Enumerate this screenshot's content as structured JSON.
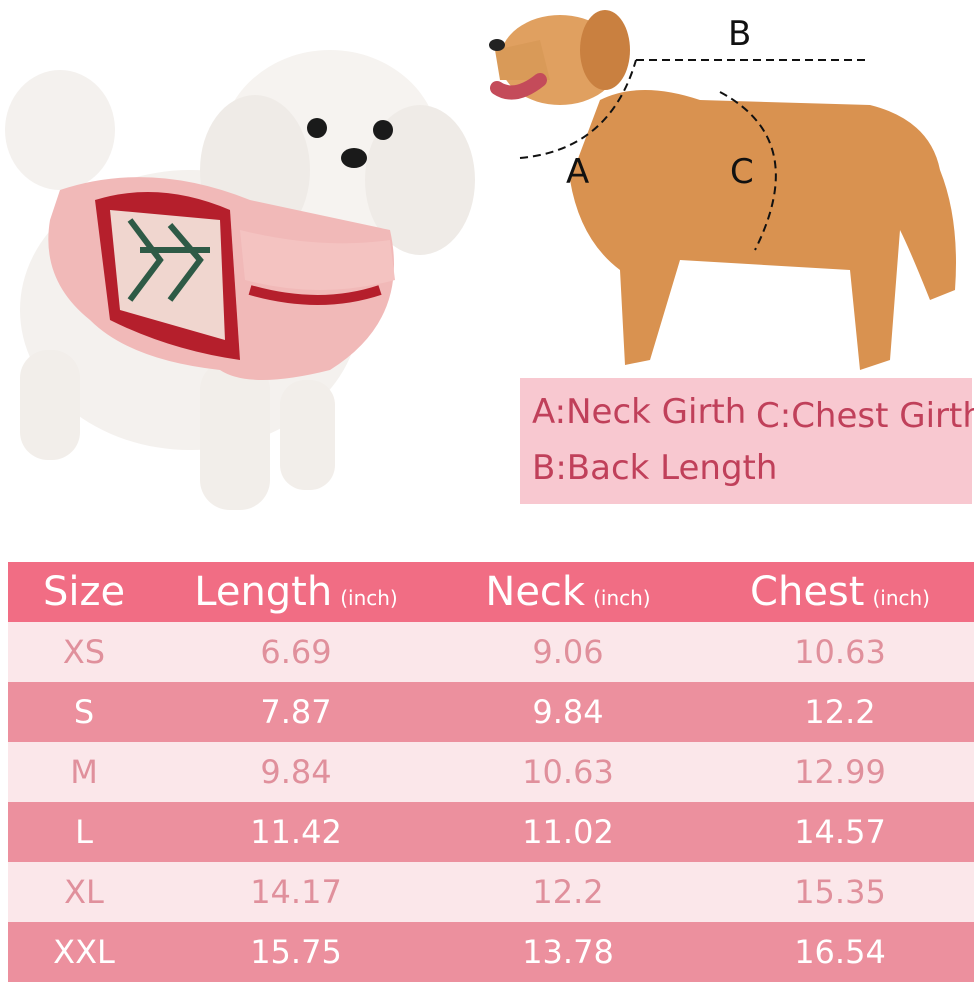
{
  "diagram": {
    "labels": {
      "a": "A",
      "b": "B",
      "c": "C"
    },
    "legend": {
      "neck": "A:Neck Girth",
      "chest": "C:Chest Girth",
      "back": "B:Back Length"
    }
  },
  "table": {
    "headers": [
      {
        "label": "Size",
        "unit": ""
      },
      {
        "label": "Length",
        "unit": "(inch)"
      },
      {
        "label": "Neck",
        "unit": "(inch)"
      },
      {
        "label": "Chest",
        "unit": "(inch)"
      }
    ],
    "rows": [
      {
        "size": "XS",
        "length": "6.69",
        "neck": "9.06",
        "chest": "10.63"
      },
      {
        "size": "S",
        "length": "7.87",
        "neck": "9.84",
        "chest": "12.2"
      },
      {
        "size": "M",
        "length": "9.84",
        "neck": "10.63",
        "chest": "12.99"
      },
      {
        "size": "L",
        "length": "11.42",
        "neck": "11.02",
        "chest": "14.57"
      },
      {
        "size": "XL",
        "length": "14.17",
        "neck": "12.2",
        "chest": "15.35"
      },
      {
        "size": "XXL",
        "length": "15.75",
        "neck": "13.78",
        "chest": "16.54"
      }
    ]
  },
  "colors": {
    "header": "#f16d84",
    "row_light": "#fbe7ea",
    "row_dark": "#ec909e",
    "legend_bg": "#f8c8d0",
    "legend_text": "#c0405a"
  }
}
